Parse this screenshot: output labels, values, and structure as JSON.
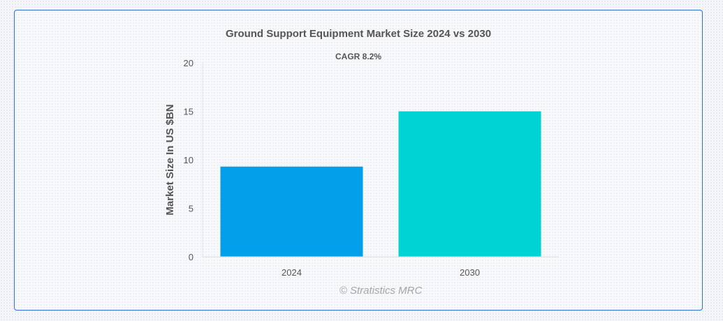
{
  "chart_data": {
    "type": "bar",
    "title": "Ground Support Equipment Market Size 2024 vs 2030",
    "subtitle": "CAGR 8.2%",
    "xlabel": "",
    "ylabel": "Market Size In US $BN",
    "categories": [
      "2024",
      "2030"
    ],
    "values": [
      9.3,
      15.0
    ],
    "colors": [
      "#039fea",
      "#00d3d4"
    ],
    "ylim": [
      0,
      20
    ],
    "yticks": [
      0,
      5,
      10,
      15,
      20
    ],
    "grid": false,
    "legend": "none"
  },
  "credit": "© Stratistics MRC"
}
